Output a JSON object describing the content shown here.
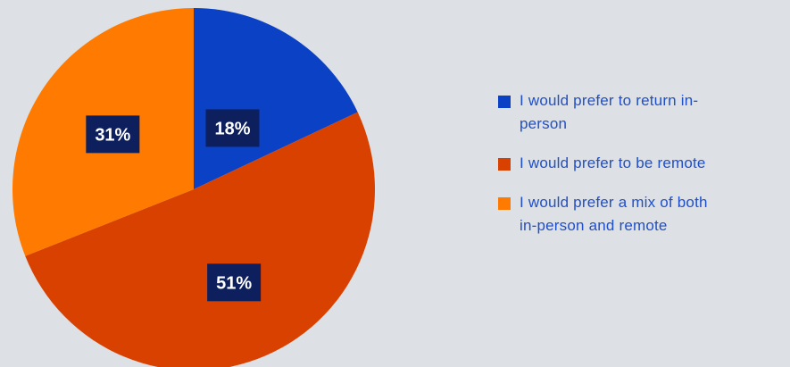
{
  "chart_data": {
    "type": "pie",
    "slices": [
      {
        "label": "I would prefer to return in-person",
        "value": 18,
        "value_label": "18%",
        "color": "#0b41c5"
      },
      {
        "label": "I would prefer to be remote",
        "value": 51,
        "value_label": "51%",
        "color": "#d94100"
      },
      {
        "label": "I would prefer a mix of both in-person and remote",
        "value": 31,
        "value_label": "31%",
        "color": "#ff7a00"
      }
    ],
    "legend_position": "right",
    "label_box_color": "#0d1f5c",
    "label_text_color": "#ffffff",
    "title": ""
  },
  "legend": {
    "items": [
      {
        "label_line1": "I would prefer to return in-",
        "label_line2": "person"
      },
      {
        "label_line1": "I would prefer to be remote",
        "label_line2": ""
      },
      {
        "label_line1": "I would prefer a mix of both",
        "label_line2": "in-person and remote"
      }
    ]
  }
}
